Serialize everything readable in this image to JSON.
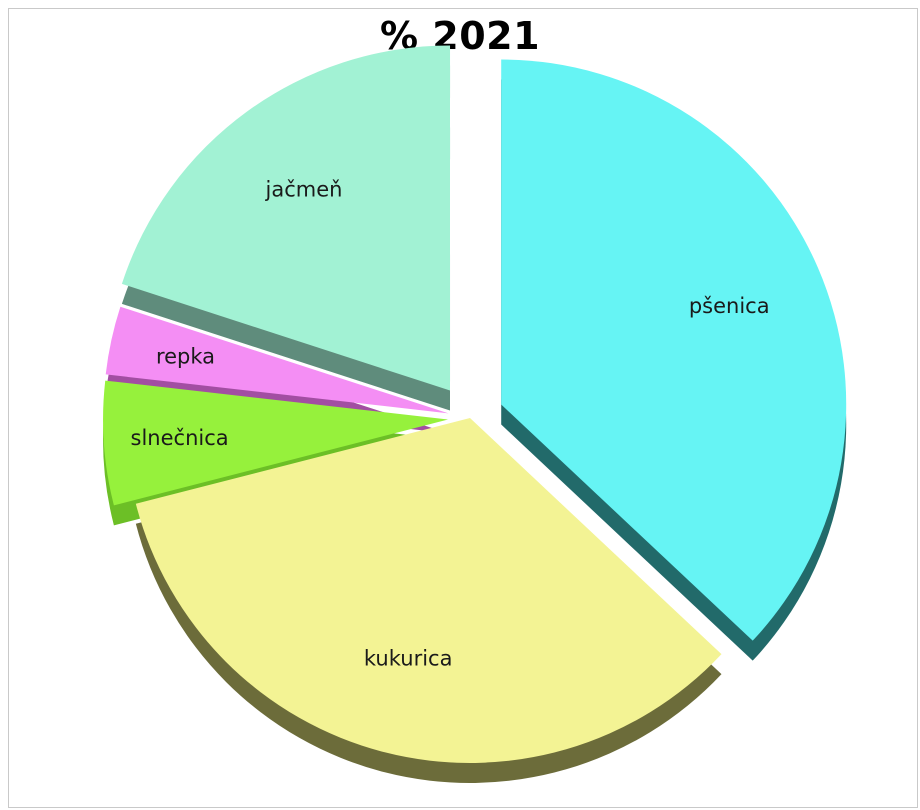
{
  "chart_data": {
    "type": "pie",
    "title": "% 2021",
    "categories": [
      "pšenica",
      "kukurica",
      "slnečnica",
      "repka",
      "jačmeň"
    ],
    "values": [
      37,
      34,
      5.8,
      3.2,
      20
    ],
    "unit": "%",
    "exploded": [
      true,
      false,
      true,
      true,
      true
    ],
    "colors": [
      "#66f4f4",
      "#f3f394",
      "#96f13c",
      "#f48ef4",
      "#a2f2d4"
    ],
    "side_colors": [
      "#226a6a",
      "#6c6c3a",
      "#6cbf26",
      "#a24ea2",
      "#5f8c7c"
    ],
    "legend": "none",
    "data_labels": "category-name-inside"
  }
}
